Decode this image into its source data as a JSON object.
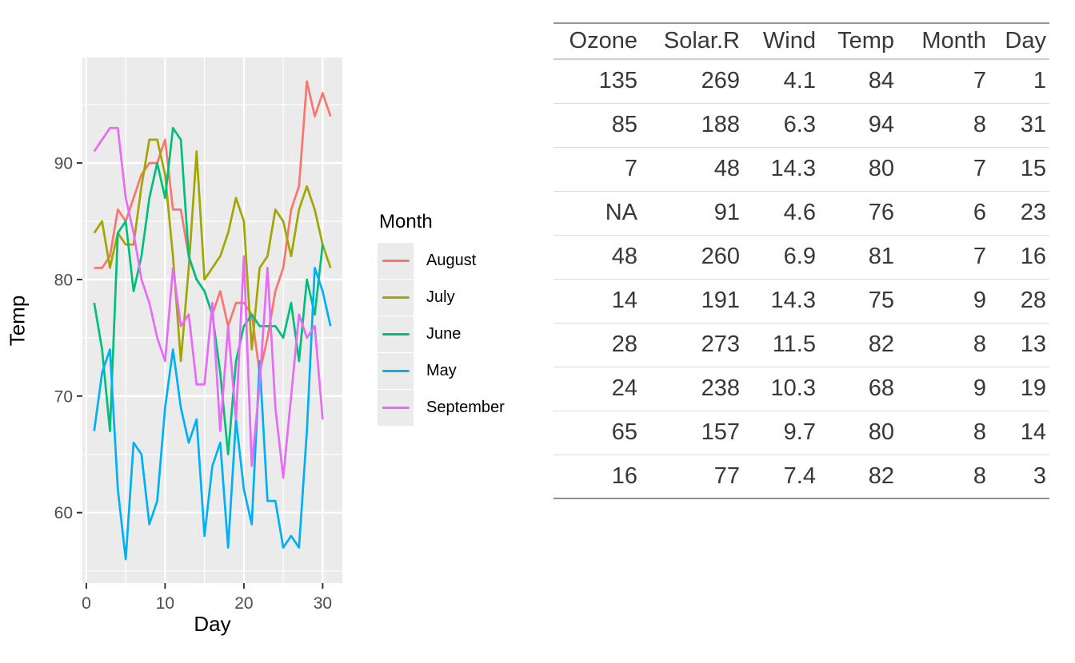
{
  "page": {
    "background": "#FFFFFF"
  },
  "chart_data": {
    "type": "line",
    "title": "",
    "xlabel": "Day",
    "ylabel": "Temp",
    "legend_title": "Month",
    "legend_position": "right",
    "grid": true,
    "panel_background": "#EBEBEB",
    "gridline_color": "#FFFFFF",
    "tick_color": "#333333",
    "tick_label_color": "#4D4D4D",
    "xlim": [
      -0.5,
      32.5
    ],
    "ylim": [
      53.95,
      99.05
    ],
    "x_major_ticks": [
      0,
      10,
      20,
      30
    ],
    "x_minor_ticks": [
      5,
      15,
      25
    ],
    "y_major_ticks": [
      60,
      70,
      80,
      90
    ],
    "y_minor_ticks": [
      55,
      65,
      75,
      85,
      95
    ],
    "x_unit": "day of month, starting at day 1",
    "series": [
      {
        "name": "August",
        "color": "#F8766D",
        "temps": [
          81,
          81,
          82,
          86,
          85,
          87,
          89,
          90,
          90,
          92,
          86,
          86,
          82,
          80,
          79,
          77,
          79,
          76,
          78,
          78,
          77,
          72,
          75,
          79,
          81,
          86,
          88,
          97,
          94,
          96,
          94
        ]
      },
      {
        "name": "July",
        "color": "#A3A500",
        "temps": [
          84,
          85,
          81,
          84,
          83,
          83,
          88,
          92,
          92,
          89,
          82,
          73,
          81,
          91,
          80,
          81,
          82,
          84,
          87,
          85,
          74,
          81,
          82,
          86,
          85,
          82,
          86,
          88,
          86,
          83,
          81
        ]
      },
      {
        "name": "June",
        "color": "#00BF7D",
        "temps": [
          78,
          74,
          67,
          84,
          85,
          79,
          82,
          87,
          90,
          87,
          93,
          92,
          82,
          80,
          79,
          77,
          72,
          65,
          73,
          76,
          77,
          76,
          76,
          76,
          75,
          78,
          73,
          80,
          77,
          83
        ]
      },
      {
        "name": "May",
        "color": "#00B0F6",
        "temps": [
          67,
          72,
          74,
          62,
          56,
          66,
          65,
          59,
          61,
          69,
          74,
          69,
          66,
          68,
          58,
          64,
          66,
          57,
          68,
          62,
          59,
          73,
          61,
          61,
          57,
          58,
          57,
          67,
          81,
          79,
          76
        ]
      },
      {
        "name": "September",
        "color": "#E76BF3",
        "temps": [
          91,
          92,
          93,
          93,
          87,
          84,
          80,
          78,
          75,
          73,
          81,
          76,
          77,
          71,
          71,
          78,
          67,
          76,
          68,
          82,
          64,
          71,
          81,
          69,
          63,
          70,
          77,
          75,
          76,
          68
        ]
      }
    ]
  },
  "table": {
    "columns": [
      "Ozone",
      "Solar.R",
      "Wind",
      "Temp",
      "Month",
      "Day"
    ],
    "rows": [
      [
        "135",
        "269",
        "4.1",
        "84",
        "7",
        "1"
      ],
      [
        "85",
        "188",
        "6.3",
        "94",
        "8",
        "31"
      ],
      [
        "7",
        "48",
        "14.3",
        "80",
        "7",
        "15"
      ],
      [
        "NA",
        "91",
        "4.6",
        "76",
        "6",
        "23"
      ],
      [
        "48",
        "260",
        "6.9",
        "81",
        "7",
        "16"
      ],
      [
        "14",
        "191",
        "14.3",
        "75",
        "9",
        "28"
      ],
      [
        "28",
        "273",
        "11.5",
        "82",
        "8",
        "13"
      ],
      [
        "24",
        "238",
        "10.3",
        "68",
        "9",
        "19"
      ],
      [
        "65",
        "157",
        "9.7",
        "80",
        "8",
        "14"
      ],
      [
        "16",
        "77",
        "7.4",
        "82",
        "8",
        "3"
      ]
    ]
  }
}
